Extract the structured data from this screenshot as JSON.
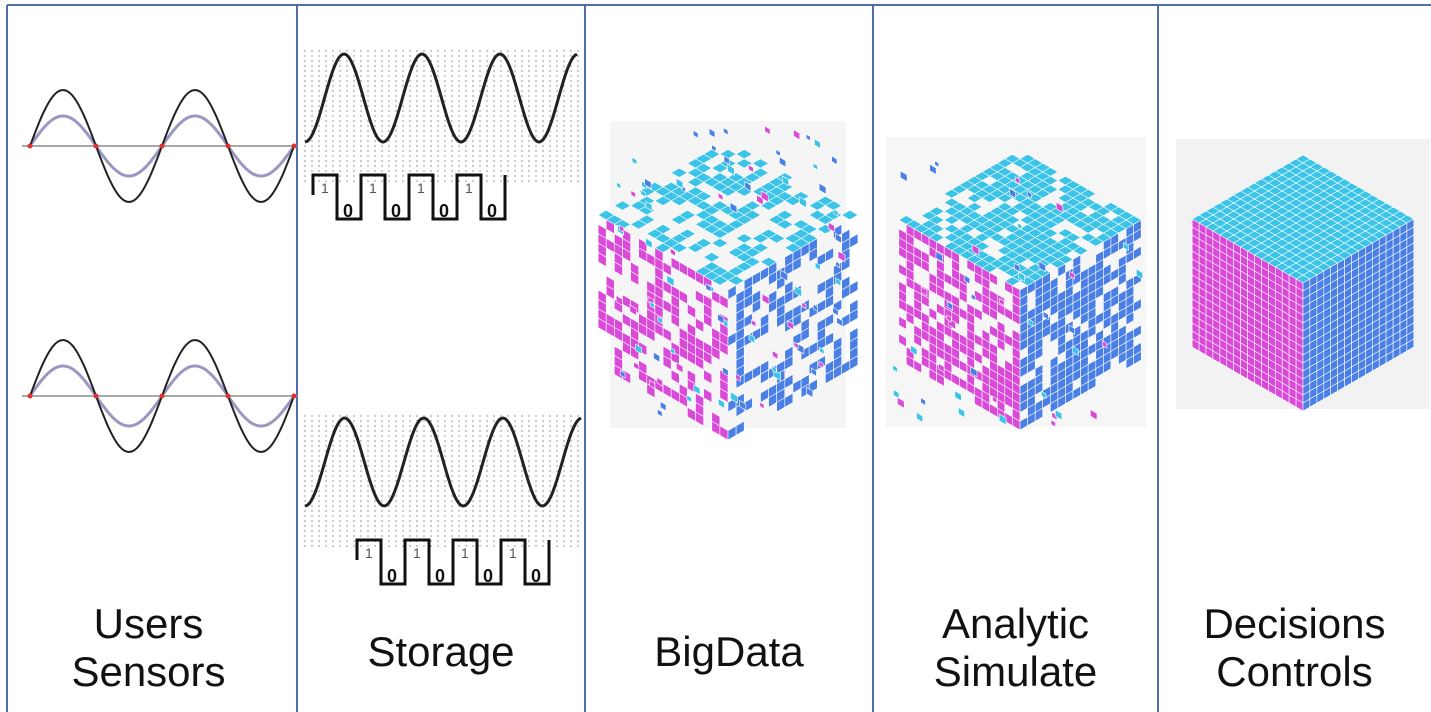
{
  "stages": [
    {
      "id": "users-sensors",
      "lines": [
        "Users",
        "Sensors"
      ],
      "illustration": "analog-sine-waves"
    },
    {
      "id": "storage",
      "lines": [
        "Storage"
      ],
      "illustration": "sampled-waves-with-digital-pulses"
    },
    {
      "id": "bigdata",
      "lines": [
        "BigData"
      ],
      "illustration": "scattered-cube"
    },
    {
      "id": "analytic-simulate",
      "lines": [
        "Analytic",
        "Simulate"
      ],
      "illustration": "partially-assembled-cube"
    },
    {
      "id": "decisions-controls",
      "lines": [
        "Decisions",
        "Controls"
      ],
      "illustration": "complete-cube"
    }
  ],
  "digital_bits": [
    "1",
    "0",
    "1",
    "0",
    "1",
    "0",
    "1",
    "0"
  ],
  "colors": {
    "border": "#4f6fa8",
    "top": "#3cc3e8",
    "left": "#d94ad8",
    "right": "#4a7fe6",
    "wave": "#222222",
    "inner_wave": "#9a98c2",
    "zero_marker": "#e03030"
  }
}
